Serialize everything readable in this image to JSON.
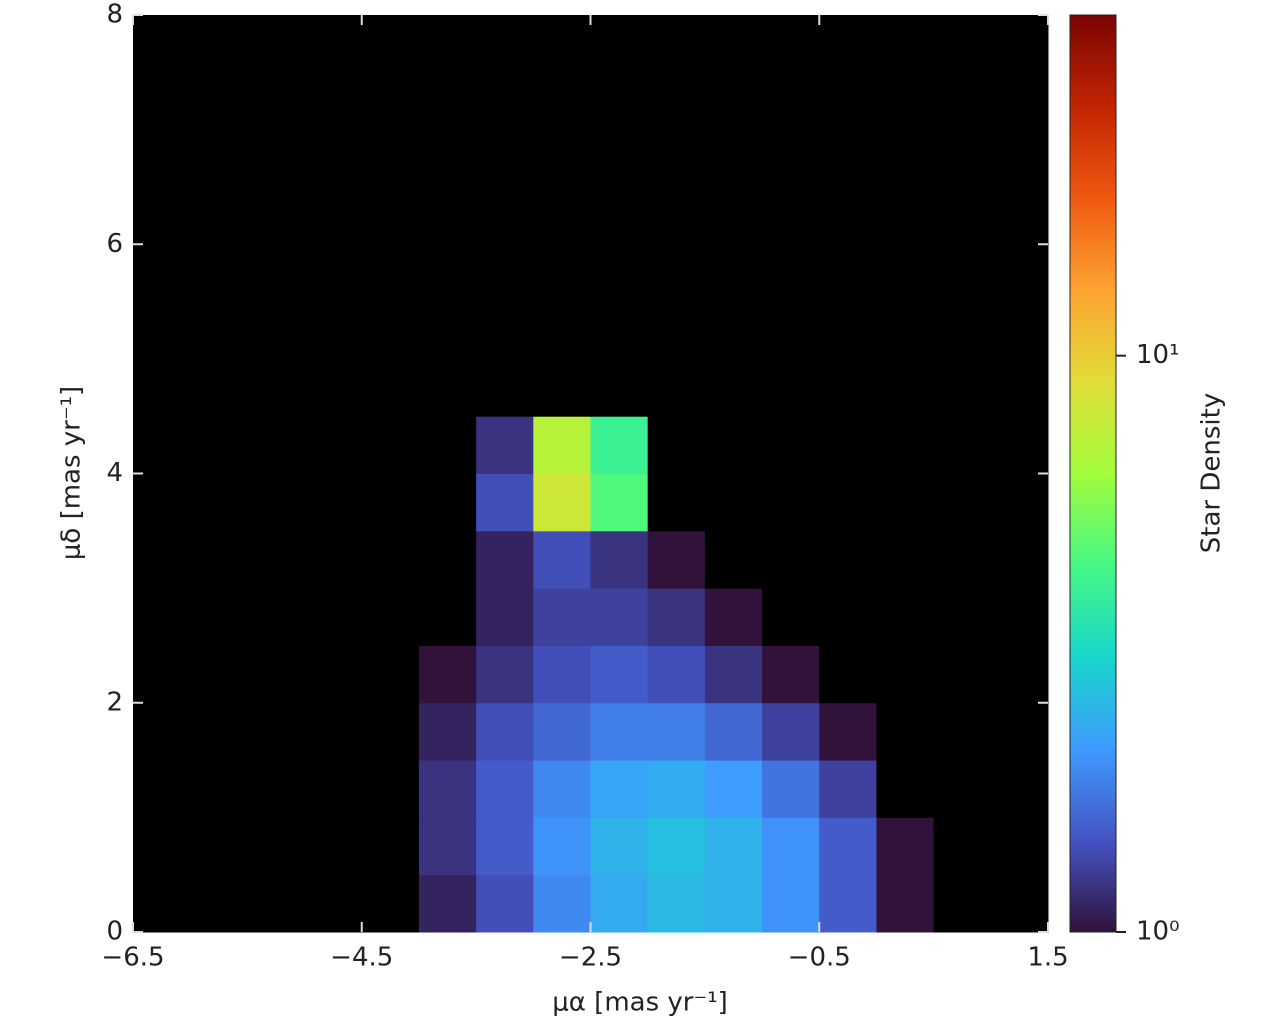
{
  "chart_data": {
    "type": "hist2d",
    "xlabel": "μα [mas yr⁻¹]",
    "ylabel": "μδ [mas yr⁻¹]",
    "zlabel": "Star Density",
    "xlim": [
      -6.5,
      1.5
    ],
    "ylim": [
      0,
      8
    ],
    "xticks": [
      {
        "value": -6.5,
        "label": "−6.5"
      },
      {
        "value": -4.5,
        "label": "−4.5"
      },
      {
        "value": -2.5,
        "label": "−2.5"
      },
      {
        "value": -0.5,
        "label": "−0.5"
      },
      1.5
    ],
    "yticks": [
      0,
      2,
      4,
      6,
      8
    ],
    "xbins": [
      -6.5,
      -6,
      -5.5,
      -5,
      -4.5,
      -4,
      -3.5,
      -3,
      -2.5,
      -2,
      -1.5,
      -1,
      -0.5,
      0,
      0.5,
      1,
      1.5
    ],
    "ybins": [
      0,
      0.5,
      1,
      1.5,
      2,
      2.5,
      3,
      3.5,
      4,
      4.5,
      5,
      5.5,
      6,
      6.5,
      7,
      7.5,
      8
    ],
    "z": [
      [
        0.3,
        0.4,
        0.5,
        0.7,
        0.9,
        1.1,
        1.4,
        1.9,
        2.3,
        2.5,
        2.4,
        2.0,
        1.5,
        1.0,
        0.6,
        0.4
      ],
      [
        0.3,
        0.4,
        0.5,
        0.7,
        0.9,
        1.2,
        1.5,
        2.0,
        2.4,
        2.6,
        2.4,
        2.0,
        1.5,
        1.0,
        0.6,
        0.4
      ],
      [
        0.3,
        0.4,
        0.5,
        0.7,
        0.9,
        1.2,
        1.5,
        1.9,
        2.2,
        2.3,
        2.1,
        1.7,
        1.3,
        0.9,
        0.5,
        0.3
      ],
      [
        0.3,
        0.3,
        0.5,
        0.6,
        0.8,
        1.1,
        1.4,
        1.6,
        1.8,
        1.8,
        1.6,
        1.3,
        1.0,
        0.7,
        0.4,
        0.3
      ],
      [
        0.2,
        0.3,
        0.4,
        0.5,
        0.7,
        1.0,
        1.2,
        1.4,
        1.5,
        1.4,
        1.2,
        1.0,
        0.8,
        0.5,
        0.3,
        0.2
      ],
      [
        0.2,
        0.3,
        0.3,
        0.5,
        0.6,
        0.9,
        1.1,
        1.3,
        1.3,
        1.2,
        1.0,
        0.8,
        0.6,
        0.4,
        0.3,
        0.2
      ],
      [
        0.2,
        0.2,
        0.3,
        0.4,
        0.6,
        0.8,
        1.1,
        1.4,
        1.2,
        1.0,
        0.8,
        0.6,
        0.5,
        0.3,
        0.2,
        0.2
      ],
      [
        0.2,
        0.2,
        0.3,
        0.4,
        0.5,
        0.7,
        1.4,
        8.0,
        4.5,
        0.9,
        0.7,
        0.5,
        0.4,
        0.3,
        0.2,
        0.2
      ],
      [
        0.2,
        0.2,
        0.2,
        0.3,
        0.5,
        0.6,
        1.2,
        7.0,
        4.0,
        0.8,
        0.6,
        0.4,
        0.3,
        0.2,
        0.2,
        0.2
      ],
      [
        0.1,
        0.2,
        0.2,
        0.3,
        0.4,
        0.5,
        0.6,
        0.8,
        0.7,
        0.6,
        0.5,
        0.4,
        0.3,
        0.2,
        0.2,
        0.1
      ],
      [
        0.1,
        0.1,
        0.2,
        0.2,
        0.3,
        0.4,
        0.5,
        0.5,
        0.5,
        0.5,
        0.4,
        0.3,
        0.2,
        0.2,
        0.1,
        0.1
      ],
      [
        0.1,
        0.1,
        0.1,
        0.2,
        0.2,
        0.3,
        0.3,
        0.4,
        0.4,
        0.3,
        0.3,
        0.2,
        0.2,
        0.1,
        0.1,
        0.1
      ],
      [
        0.1,
        0.1,
        0.1,
        0.1,
        0.2,
        0.2,
        0.2,
        0.3,
        0.3,
        0.2,
        0.2,
        0.2,
        0.1,
        0.1,
        0.1,
        0.1
      ],
      [
        0.1,
        0.1,
        0.1,
        0.1,
        0.1,
        0.2,
        0.2,
        0.2,
        0.2,
        0.2,
        0.2,
        0.1,
        0.1,
        0.1,
        0.1,
        0.1
      ],
      [
        0.1,
        0.1,
        0.1,
        0.1,
        0.1,
        0.1,
        0.2,
        0.2,
        0.2,
        0.2,
        0.1,
        0.1,
        0.1,
        0.1,
        0.1,
        0.1
      ],
      [
        0.1,
        0.1,
        0.1,
        0.1,
        0.1,
        0.1,
        0.1,
        0.1,
        0.1,
        0.1,
        0.1,
        0.1,
        0.1,
        0.1,
        0.1,
        0.1
      ]
    ],
    "zscale": "log",
    "zlim": [
      1,
      39
    ],
    "zticks": [
      {
        "value": 1,
        "label": "10⁰"
      },
      {
        "value": 10,
        "label": "10¹"
      }
    ],
    "colormap": [
      "#30123b",
      "#4454c4",
      "#3e9bfe",
      "#18d6cb",
      "#46f884",
      "#a2fc3c",
      "#e1dd37",
      "#fea331",
      "#ef5911",
      "#c22402",
      "#7a0403"
    ],
    "under_color": "#000000"
  }
}
